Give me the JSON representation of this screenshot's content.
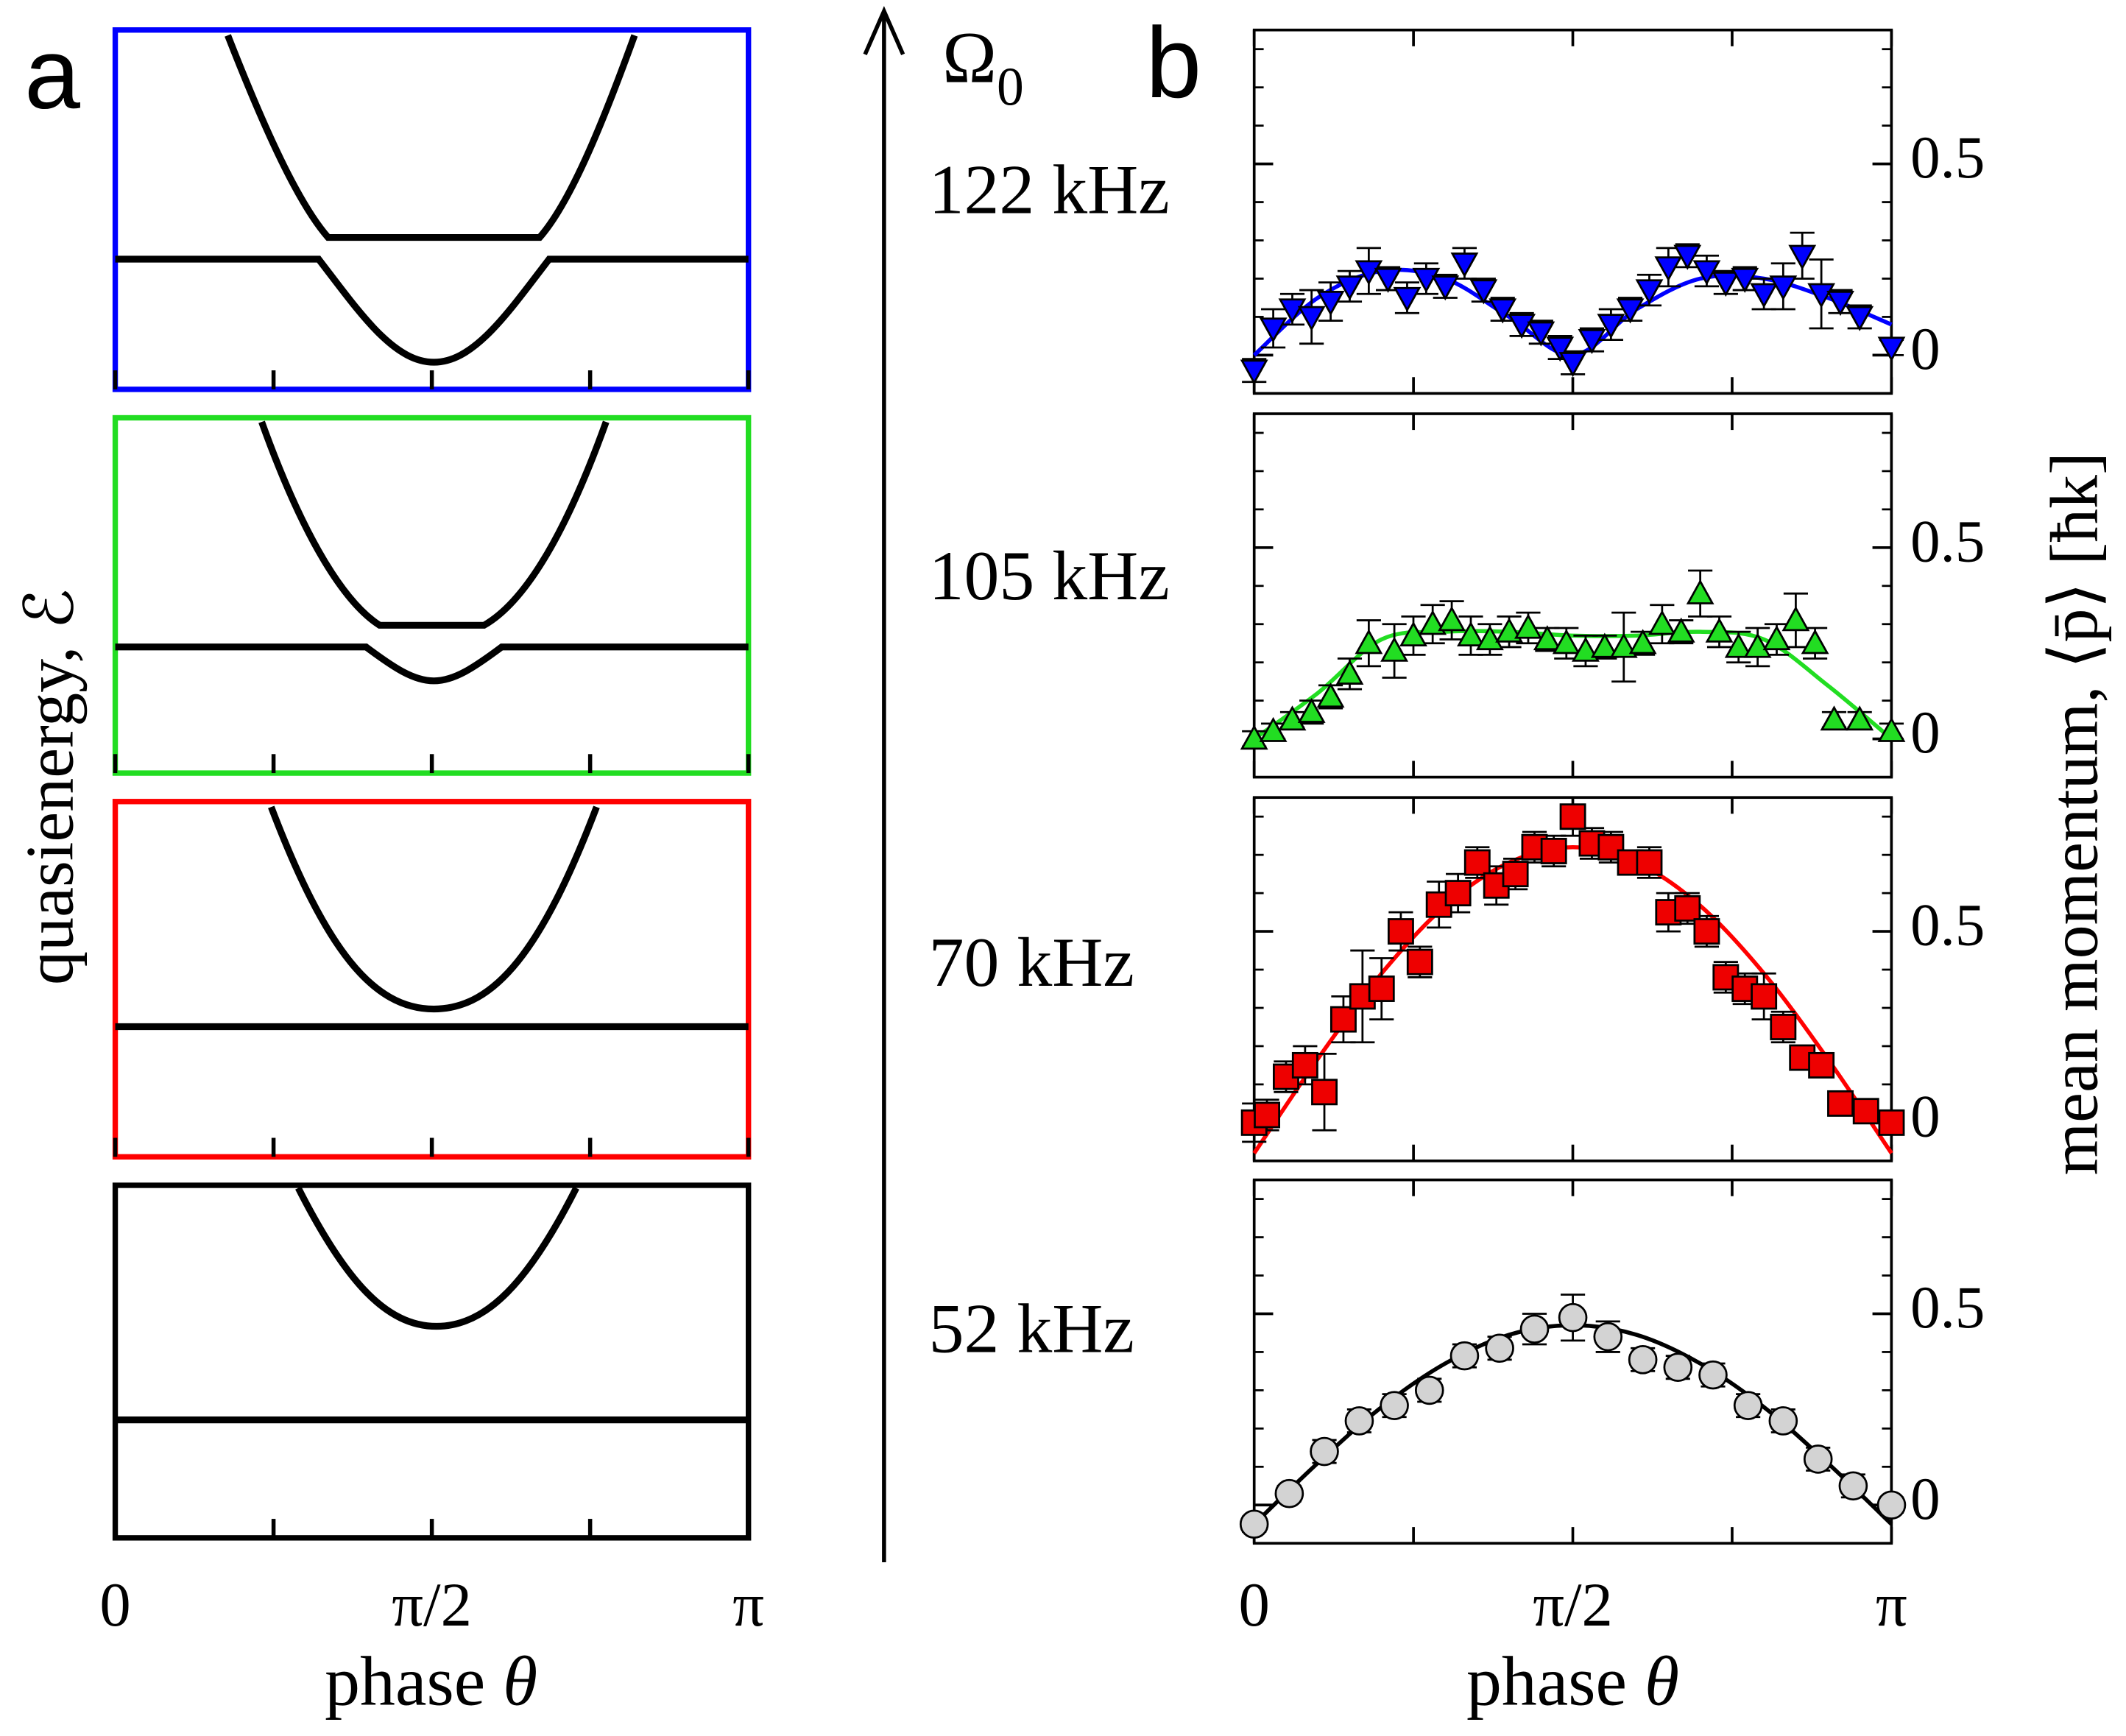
{
  "panel_a": {
    "label": "a",
    "ylabel": "quasienergy, ℰ",
    "xticks": [
      {
        "value": 0,
        "label": "0"
      },
      {
        "value": 1.5708,
        "label": "π/2"
      },
      {
        "value": 3.1416,
        "label": "π"
      }
    ],
    "xminor": [
      0.7854,
      2.3562
    ],
    "xlim": [
      0,
      3.1416
    ],
    "xlabel": "phase",
    "xlabel_symbol": "θ"
  },
  "arrow": {
    "symbol": "Ω",
    "subscript": "0"
  },
  "panel_b": {
    "label": "b",
    "xlim": [
      0,
      3.1416
    ],
    "xticks": [
      {
        "value": 0,
        "label": "0"
      },
      {
        "value": 1.5708,
        "label": "π/2"
      },
      {
        "value": 3.1416,
        "label": "π"
      }
    ],
    "xminor": [
      0.7854,
      2.3562
    ],
    "xlabel": "phase",
    "xlabel_symbol": "θ",
    "ylabel": "mean momentum, ⟨p̄⟩  [ħk]"
  },
  "chart_data": [
    {
      "type": "scatter",
      "label": "122 kHz",
      "color": "#0000ff",
      "fit_color": "#0000ff",
      "marker": "triangle-down",
      "ylim": [
        -0.1,
        0.85
      ],
      "yticks": [
        0,
        0.5
      ],
      "yminor": [
        0.1,
        0.2,
        0.3,
        0.4,
        0.6,
        0.7,
        0.8
      ],
      "x": [
        0,
        0.094,
        0.188,
        0.283,
        0.377,
        0.471,
        0.565,
        0.66,
        0.754,
        0.848,
        0.942,
        1.037,
        1.131,
        1.225,
        1.319,
        1.414,
        1.508,
        1.571,
        1.665,
        1.759,
        1.854,
        1.948,
        2.042,
        2.136,
        2.231,
        2.325,
        2.419,
        2.513,
        2.608,
        2.702,
        2.796,
        2.89,
        2.985,
        3.142
      ],
      "values": [
        -0.04,
        0.07,
        0.12,
        0.1,
        0.14,
        0.18,
        0.22,
        0.2,
        0.15,
        0.2,
        0.18,
        0.24,
        0.17,
        0.12,
        0.08,
        0.06,
        0.02,
        -0.02,
        0.04,
        0.08,
        0.12,
        0.17,
        0.23,
        0.26,
        0.22,
        0.19,
        0.2,
        0.16,
        0.18,
        0.26,
        0.16,
        0.14,
        0.1,
        0.02
      ],
      "errors": [
        0.03,
        0.05,
        0.04,
        0.07,
        0.05,
        0.04,
        0.06,
        0.03,
        0.04,
        0.04,
        0.03,
        0.04,
        0.03,
        0.03,
        0.03,
        0.03,
        0.03,
        0.03,
        0.03,
        0.04,
        0.03,
        0.04,
        0.05,
        0.03,
        0.04,
        0.03,
        0.03,
        0.04,
        0.06,
        0.06,
        0.09,
        0.03,
        0.03,
        0.02
      ],
      "fit_x": [
        0,
        0.314,
        0.628,
        0.942,
        1.257,
        1.571,
        1.885,
        2.199,
        2.513,
        2.827,
        3.142
      ],
      "fit_values": [
        0,
        0.15,
        0.22,
        0.2,
        0.1,
        0.0,
        0.12,
        0.2,
        0.2,
        0.15,
        0.08
      ]
    },
    {
      "type": "scatter",
      "label": "105 kHz",
      "color": "#22dd22",
      "fit_color": "#22dd22",
      "marker": "triangle-up",
      "ylim": [
        -0.1,
        0.85
      ],
      "yticks": [
        0,
        0.5
      ],
      "yminor": [
        0.1,
        0.2,
        0.3,
        0.4,
        0.6,
        0.7,
        0.8
      ],
      "x": [
        0,
        0.094,
        0.188,
        0.283,
        0.377,
        0.471,
        0.565,
        0.691,
        0.785,
        0.88,
        0.974,
        1.068,
        1.162,
        1.257,
        1.351,
        1.445,
        1.539,
        1.634,
        1.728,
        1.822,
        1.916,
        2.011,
        2.105,
        2.199,
        2.293,
        2.388,
        2.482,
        2.576,
        2.67,
        2.765,
        2.859,
        2.985,
        3.142
      ],
      "values": [
        0,
        0.02,
        0.05,
        0.07,
        0.11,
        0.17,
        0.25,
        0.23,
        0.27,
        0.3,
        0.31,
        0.27,
        0.26,
        0.28,
        0.29,
        0.26,
        0.25,
        0.23,
        0.24,
        0.24,
        0.25,
        0.3,
        0.28,
        0.38,
        0.28,
        0.24,
        0.24,
        0.26,
        0.31,
        0.25,
        0.05,
        0.05,
        0.02
      ],
      "errors": [
        0.02,
        0.02,
        0.02,
        0.03,
        0.03,
        0.04,
        0.06,
        0.07,
        0.05,
        0.05,
        0.05,
        0.05,
        0.04,
        0.04,
        0.04,
        0.03,
        0.04,
        0.04,
        0.03,
        0.09,
        0.03,
        0.05,
        0.03,
        0.06,
        0.04,
        0.04,
        0.05,
        0.04,
        0.07,
        0.04,
        0.02,
        0.02,
        0.02
      ],
      "fit_x": [
        0,
        0.314,
        0.628,
        0.942,
        1.257,
        1.571,
        1.885,
        2.199,
        2.513,
        2.827,
        3.142
      ],
      "fit_values": [
        0,
        0.12,
        0.26,
        0.28,
        0.28,
        0.27,
        0.27,
        0.28,
        0.26,
        0.14,
        0.0
      ]
    },
    {
      "type": "scatter",
      "label": "70 kHz",
      "color": "#ee0000",
      "fit_color": "#ff0000",
      "marker": "square",
      "ylim": [
        -0.1,
        0.85
      ],
      "yticks": [
        0,
        0.5
      ],
      "yminor": [
        0.1,
        0.2,
        0.3,
        0.4,
        0.6,
        0.7,
        0.8
      ],
      "x": [
        0,
        0.063,
        0.157,
        0.251,
        0.346,
        0.44,
        0.534,
        0.628,
        0.723,
        0.817,
        0.911,
        1.005,
        1.1,
        1.194,
        1.288,
        1.382,
        1.477,
        1.571,
        1.665,
        1.759,
        1.854,
        1.948,
        2.042,
        2.136,
        2.231,
        2.325,
        2.419,
        2.513,
        2.608,
        2.702,
        2.796,
        2.89,
        3.016,
        3.142
      ],
      "values": [
        0,
        0.02,
        0.12,
        0.15,
        0.08,
        0.27,
        0.33,
        0.35,
        0.5,
        0.42,
        0.57,
        0.6,
        0.68,
        0.62,
        0.65,
        0.72,
        0.71,
        0.8,
        0.73,
        0.72,
        0.68,
        0.68,
        0.55,
        0.56,
        0.5,
        0.38,
        0.35,
        0.33,
        0.25,
        0.17,
        0.15,
        0.05,
        0.03,
        0.0
      ],
      "errors": [
        0.05,
        0.04,
        0.04,
        0.05,
        0.1,
        0.06,
        0.12,
        0.08,
        0.05,
        0.04,
        0.06,
        0.05,
        0.04,
        0.05,
        0.04,
        0.04,
        0.04,
        0.05,
        0.04,
        0.04,
        0.03,
        0.04,
        0.05,
        0.04,
        0.04,
        0.04,
        0.04,
        0.06,
        0.04,
        0.03,
        0.03,
        0.03,
        0.03,
        0.02
      ],
      "fit_x": [
        0,
        0.314,
        0.628,
        0.942,
        1.257,
        1.571,
        1.885,
        2.199,
        2.513,
        2.827,
        3.142
      ],
      "fit_values": [
        -0.08,
        0.167,
        0.39,
        0.567,
        0.68,
        0.72,
        0.68,
        0.567,
        0.39,
        0.167,
        -0.08
      ]
    },
    {
      "type": "scatter",
      "label": "52 kHz",
      "color": "#d3d3d3",
      "fit_color": "#000000",
      "marker": "circle",
      "ylim": [
        -0.1,
        0.85
      ],
      "yticks": [
        0,
        0.5
      ],
      "yminor": [
        0.1,
        0.2,
        0.3,
        0.4,
        0.6,
        0.7,
        0.8
      ],
      "x": [
        0,
        0.173,
        0.346,
        0.518,
        0.691,
        0.864,
        1.037,
        1.21,
        1.382,
        1.571,
        1.744,
        1.916,
        2.089,
        2.262,
        2.435,
        2.608,
        2.78,
        2.953,
        3.142
      ],
      "values": [
        -0.05,
        0.03,
        0.14,
        0.22,
        0.26,
        0.3,
        0.39,
        0.41,
        0.46,
        0.49,
        0.44,
        0.38,
        0.36,
        0.34,
        0.26,
        0.22,
        0.12,
        0.05,
        0.0
      ],
      "errors": [
        0.02,
        0.02,
        0.03,
        0.03,
        0.03,
        0.03,
        0.03,
        0.03,
        0.04,
        0.06,
        0.04,
        0.03,
        0.03,
        0.03,
        0.03,
        0.03,
        0.03,
        0.03,
        0.02
      ],
      "fit_x": [
        0,
        0.314,
        0.628,
        0.942,
        1.257,
        1.571,
        1.885,
        2.199,
        2.513,
        2.827,
        3.142
      ],
      "fit_values": [
        -0.05,
        0.11,
        0.256,
        0.37,
        0.445,
        0.47,
        0.445,
        0.37,
        0.256,
        0.11,
        -0.05
      ]
    }
  ]
}
